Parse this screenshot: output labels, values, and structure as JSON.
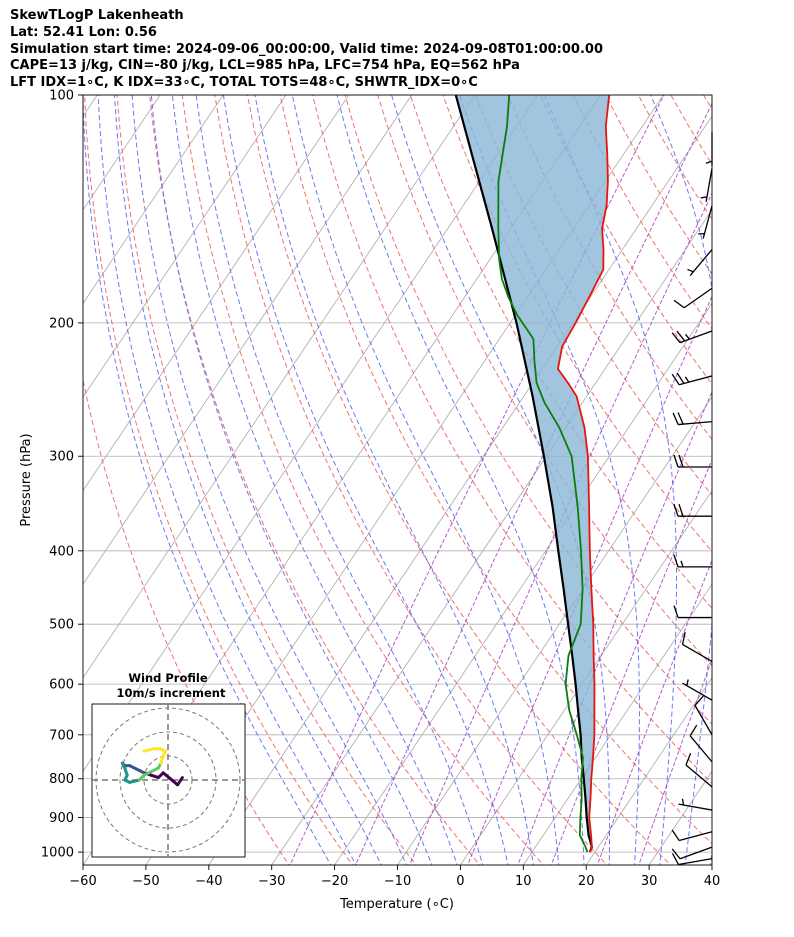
{
  "header": {
    "line1": "SkewTLogP Lakenheath",
    "line2": "Lat: 52.41   Lon: 0.56",
    "line3": "Simulation start time: 2024-09-06_00:00:00, Valid time: 2024-09-08T01:00:00.00",
    "line4": "CAPE=13 j/kg, CIN=-80 j/kg, LCL=985 hPa, LFC=754 hPa, EQ=562 hPa",
    "line5": "LFT IDX=1∘C, K IDX=33∘C, TOTAL TOTS=48∘C, SHWTR_IDX=0∘C"
  },
  "colors": {
    "temperature": "#e8140e",
    "dewpoint": "#0a7d0a",
    "parcel": "#000000",
    "cape_fill": "#8ab6d6",
    "dry_adiabat": "#f06060",
    "moist_adiabat": "#5a6bf0",
    "isotherm": "#a9a9a9",
    "mixing_ratio": "#a033c0",
    "grid": "#b0b0b0"
  },
  "chart_data": {
    "type": "skewt",
    "xlabel": "Temperature (∘C)",
    "ylabel": "Pressure (hPa)",
    "xlim": [
      -60,
      40
    ],
    "ylim": [
      1040,
      100
    ],
    "x_ticks": [
      -60,
      -50,
      -40,
      -30,
      -20,
      -10,
      0,
      10,
      20,
      30,
      40
    ],
    "x_tick_labels": [
      "−60",
      "−50",
      "−40",
      "−30",
      "−20",
      "−10",
      "0",
      "10",
      "20",
      "30",
      "40"
    ],
    "y_ticks": [
      1000,
      900,
      800,
      700,
      600,
      500,
      400,
      300,
      200,
      100
    ],
    "y_tick_labels": [
      "1000",
      "900",
      "800",
      "700",
      "600",
      "500",
      "400",
      "300",
      "200",
      "100"
    ],
    "temperature": [
      [
        1000,
        19.2
      ],
      [
        985,
        19.0
      ],
      [
        950,
        17.6
      ],
      [
        900,
        15.4
      ],
      [
        850,
        13.6
      ],
      [
        800,
        11.6
      ],
      [
        750,
        9.6
      ],
      [
        700,
        7.4
      ],
      [
        650,
        4.8
      ],
      [
        600,
        2.0
      ],
      [
        550,
        -1.2
      ],
      [
        500,
        -4.6
      ],
      [
        450,
        -8.6
      ],
      [
        400,
        -13.0
      ],
      [
        350,
        -17.8
      ],
      [
        300,
        -23.4
      ],
      [
        275,
        -27.0
      ],
      [
        250,
        -31.6
      ],
      [
        240,
        -34.4
      ],
      [
        230,
        -37.5
      ],
      [
        215,
        -39.2
      ],
      [
        200,
        -39.6
      ],
      [
        185,
        -40.2
      ],
      [
        170,
        -40.9
      ],
      [
        160,
        -43.0
      ],
      [
        150,
        -45.5
      ],
      [
        140,
        -47.2
      ],
      [
        130,
        -49.6
      ],
      [
        120,
        -52.5
      ],
      [
        110,
        -55.8
      ],
      [
        100,
        -58.6
      ]
    ],
    "dewpoint": [
      [
        1000,
        18.8
      ],
      [
        985,
        18.0
      ],
      [
        950,
        15.8
      ],
      [
        900,
        14.0
      ],
      [
        850,
        12.2
      ],
      [
        800,
        10.0
      ],
      [
        750,
        8.0
      ],
      [
        700,
        4.6
      ],
      [
        650,
        0.8
      ],
      [
        600,
        -2.6
      ],
      [
        550,
        -5.2
      ],
      [
        500,
        -6.6
      ],
      [
        450,
        -10.0
      ],
      [
        400,
        -14.4
      ],
      [
        350,
        -19.6
      ],
      [
        300,
        -26.0
      ],
      [
        275,
        -31.0
      ],
      [
        255,
        -36.0
      ],
      [
        240,
        -39.4
      ],
      [
        225,
        -42.0
      ],
      [
        210,
        -44.6
      ],
      [
        195,
        -49.8
      ],
      [
        185,
        -53.0
      ],
      [
        175,
        -56.0
      ],
      [
        165,
        -58.5
      ],
      [
        150,
        -62.0
      ],
      [
        130,
        -67.0
      ],
      [
        110,
        -71.5
      ],
      [
        100,
        -74.5
      ]
    ],
    "parcel": [
      [
        1000,
        19.2
      ],
      [
        985,
        19.0
      ],
      [
        950,
        17.2
      ],
      [
        900,
        15.0
      ],
      [
        850,
        12.8
      ],
      [
        800,
        10.4
      ],
      [
        750,
        7.8
      ],
      [
        700,
        5.2
      ],
      [
        650,
        2.2
      ],
      [
        600,
        -1.0
      ],
      [
        550,
        -4.6
      ],
      [
        500,
        -8.6
      ],
      [
        450,
        -13.0
      ],
      [
        400,
        -18.0
      ],
      [
        350,
        -23.6
      ],
      [
        300,
        -30.4
      ],
      [
        250,
        -38.6
      ],
      [
        200,
        -49.0
      ],
      [
        175,
        -55.5
      ],
      [
        150,
        -63.0
      ],
      [
        125,
        -72.0
      ],
      [
        100,
        -83.0
      ]
    ],
    "wind_barbs": [
      {
        "p": 1020,
        "dir": 260,
        "kt": 10
      },
      {
        "p": 985,
        "dir": 250,
        "kt": 10
      },
      {
        "p": 940,
        "dir": 255,
        "kt": 10
      },
      {
        "p": 880,
        "dir": 280,
        "kt": 5
      },
      {
        "p": 820,
        "dir": 310,
        "kt": 10
      },
      {
        "p": 760,
        "dir": 320,
        "kt": 10
      },
      {
        "p": 700,
        "dir": 330,
        "kt": 10
      },
      {
        "p": 630,
        "dir": 300,
        "kt": 5
      },
      {
        "p": 560,
        "dir": 300,
        "kt": 10
      },
      {
        "p": 490,
        "dir": 270,
        "kt": 10
      },
      {
        "p": 420,
        "dir": 270,
        "kt": 15
      },
      {
        "p": 360,
        "dir": 270,
        "kt": 20
      },
      {
        "p": 310,
        "dir": 270,
        "kt": 20
      },
      {
        "p": 270,
        "dir": 265,
        "kt": 20
      },
      {
        "p": 235,
        "dir": 255,
        "kt": 25
      },
      {
        "p": 205,
        "dir": 250,
        "kt": 25
      },
      {
        "p": 180,
        "dir": 235,
        "kt": 10
      },
      {
        "p": 160,
        "dir": 220,
        "kt": 5
      },
      {
        "p": 140,
        "dir": 195,
        "kt": 5
      },
      {
        "p": 125,
        "dir": 190,
        "kt": 5
      },
      {
        "p": 112,
        "dir": 180,
        "kt": 5
      }
    ],
    "hodograph": {
      "title": "Wind Profile",
      "subtitle": "10m/s increment",
      "rings": [
        10,
        20,
        30
      ],
      "points": [
        [
          6,
          1
        ],
        [
          4,
          -2
        ],
        [
          -2,
          3
        ],
        [
          -4,
          1
        ],
        [
          -7,
          2
        ],
        [
          -10,
          3
        ],
        [
          -12,
          4
        ],
        [
          -16,
          6
        ],
        [
          -18,
          6
        ],
        [
          -19,
          7
        ],
        [
          -18,
          5
        ],
        [
          -17,
          2
        ],
        [
          -18,
          0
        ],
        [
          -16,
          -1
        ],
        [
          -12,
          0
        ],
        [
          -10,
          2
        ],
        [
          -8,
          3
        ],
        [
          -4,
          5
        ],
        [
          -3,
          7
        ],
        [
          -2,
          10
        ],
        [
          -1,
          12
        ],
        [
          -3,
          13
        ],
        [
          -6,
          13
        ],
        [
          -10,
          12
        ]
      ]
    }
  }
}
